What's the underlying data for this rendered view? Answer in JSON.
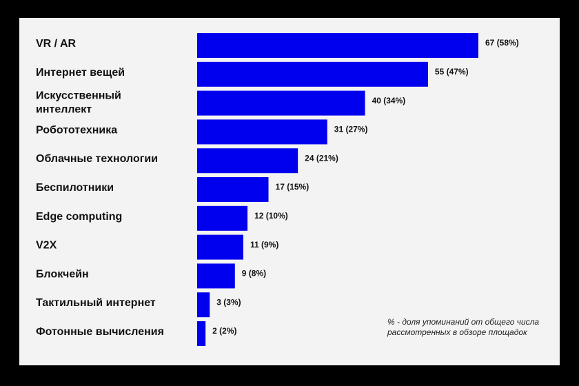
{
  "chart_data": {
    "type": "bar",
    "orientation": "horizontal",
    "categories": [
      [
        "VR / AR"
      ],
      [
        "Интернет вещей"
      ],
      [
        "Искусственный",
        "интеллект"
      ],
      [
        "Робототехника"
      ],
      [
        "Облачные технологии"
      ],
      [
        "Беспилотники"
      ],
      [
        "Edge computing"
      ],
      [
        "V2X"
      ],
      [
        "Блокчейн"
      ],
      [
        "Тактильный интернет"
      ],
      [
        "Фотонные вычисления"
      ]
    ],
    "values": [
      67,
      55,
      40,
      31,
      24,
      17,
      12,
      11,
      9,
      3,
      2
    ],
    "data_labels": [
      "67 (58%)",
      "55 (47%)",
      "40 (34%)",
      "31 (27%)",
      "24 (21%)",
      "17 (15%)",
      "12 (10%)",
      "11 (9%)",
      "9 (8%)",
      "3 (3%)",
      "2 (2%)"
    ],
    "bar_color": "#0000ee",
    "grid": false,
    "legend": "none"
  },
  "footnote": "% - доля упоминаний от общего числа рассмотренных в обзоре площадок",
  "colors": {
    "background": "#f3f3f3",
    "frame": "#000000",
    "text": "#111111"
  }
}
